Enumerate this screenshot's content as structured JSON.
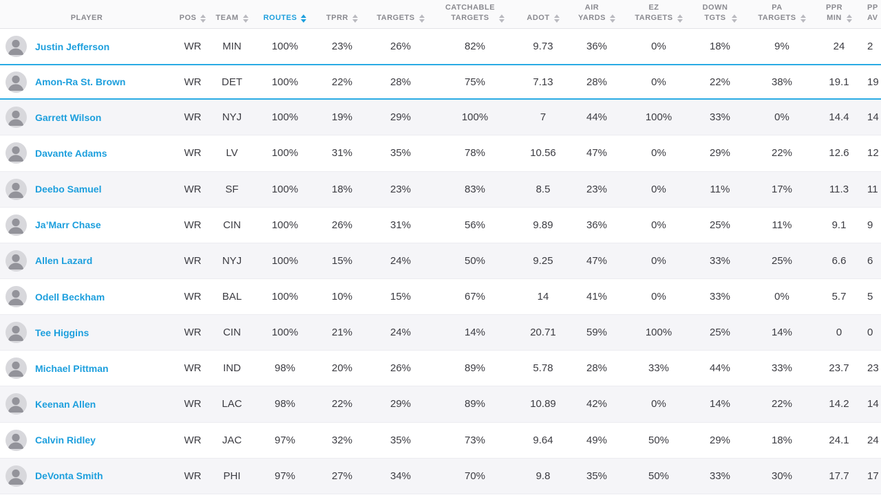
{
  "colors": {
    "accent_blue": "#1d9fdd",
    "header_text": "#8a8a90",
    "body_text": "#3c3c42",
    "stripe": "#f5f5f8",
    "row_border": "#ececf0",
    "header_bg": "#fafafb",
    "header_border": "#e3e3e7",
    "selected_border": "#2aabe4",
    "avatar_bg": "#d8d8dc",
    "avatar_fg": "#93939a"
  },
  "table": {
    "sorted_column": "ROUTES",
    "sort_direction": "desc",
    "columns": [
      {
        "key": "player",
        "label": "PLAYER",
        "sortable": false,
        "sorted": false
      },
      {
        "key": "pos",
        "label": "POS",
        "sortable": true,
        "sorted": false
      },
      {
        "key": "team",
        "label": "TEAM",
        "sortable": true,
        "sorted": false
      },
      {
        "key": "routes",
        "label": "ROUTES",
        "sortable": true,
        "sorted": true
      },
      {
        "key": "tprr",
        "label": "TPRR",
        "sortable": true,
        "sorted": false
      },
      {
        "key": "targets",
        "label": "TARGETS",
        "sortable": true,
        "sorted": false
      },
      {
        "key": "catchable",
        "label": "CATCHABLE\nTARGETS",
        "sortable": true,
        "sorted": false
      },
      {
        "key": "adot",
        "label": "ADOT",
        "sortable": true,
        "sorted": false
      },
      {
        "key": "air_yards",
        "label": "AIR\nYARDS",
        "sortable": true,
        "sorted": false
      },
      {
        "key": "ez_targets",
        "label": "EZ\nTARGETS",
        "sortable": true,
        "sorted": false
      },
      {
        "key": "down_tgts",
        "label": "DOWN\nTGTS",
        "sortable": true,
        "sorted": false
      },
      {
        "key": "pa_targets",
        "label": "PA\nTARGETS",
        "sortable": true,
        "sorted": false
      },
      {
        "key": "ppr_min",
        "label": "PPR\nMIN",
        "sortable": true,
        "sorted": false
      },
      {
        "key": "ppr_avg",
        "label": "PP\nAV",
        "sortable": true,
        "sorted": false,
        "clipped_at_right_edge": true
      }
    ],
    "rows": [
      {
        "player": "Justin Jefferson",
        "pos": "WR",
        "team": "MIN",
        "routes": "100%",
        "tprr": "23%",
        "targets": "26%",
        "catchable": "82%",
        "adot": "9.73",
        "air_yards": "36%",
        "ez_targets": "0%",
        "down_tgts": "18%",
        "pa_targets": "9%",
        "ppr_min": "24",
        "ppr_avg": "2",
        "selected": false
      },
      {
        "player": "Amon-Ra St. Brown",
        "pos": "WR",
        "team": "DET",
        "routes": "100%",
        "tprr": "22%",
        "targets": "28%",
        "catchable": "75%",
        "adot": "7.13",
        "air_yards": "28%",
        "ez_targets": "0%",
        "down_tgts": "22%",
        "pa_targets": "38%",
        "ppr_min": "19.1",
        "ppr_avg": "19",
        "selected": true
      },
      {
        "player": "Garrett Wilson",
        "pos": "WR",
        "team": "NYJ",
        "routes": "100%",
        "tprr": "19%",
        "targets": "29%",
        "catchable": "100%",
        "adot": "7",
        "air_yards": "44%",
        "ez_targets": "100%",
        "down_tgts": "33%",
        "pa_targets": "0%",
        "ppr_min": "14.4",
        "ppr_avg": "14",
        "selected": false
      },
      {
        "player": "Davante Adams",
        "pos": "WR",
        "team": "LV",
        "routes": "100%",
        "tprr": "31%",
        "targets": "35%",
        "catchable": "78%",
        "adot": "10.56",
        "air_yards": "47%",
        "ez_targets": "0%",
        "down_tgts": "29%",
        "pa_targets": "22%",
        "ppr_min": "12.6",
        "ppr_avg": "12",
        "selected": false
      },
      {
        "player": "Deebo Samuel",
        "pos": "WR",
        "team": "SF",
        "routes": "100%",
        "tprr": "18%",
        "targets": "23%",
        "catchable": "83%",
        "adot": "8.5",
        "air_yards": "23%",
        "ez_targets": "0%",
        "down_tgts": "11%",
        "pa_targets": "17%",
        "ppr_min": "11.3",
        "ppr_avg": "11",
        "selected": false
      },
      {
        "player": "Ja’Marr Chase",
        "pos": "WR",
        "team": "CIN",
        "routes": "100%",
        "tprr": "26%",
        "targets": "31%",
        "catchable": "56%",
        "adot": "9.89",
        "air_yards": "36%",
        "ez_targets": "0%",
        "down_tgts": "25%",
        "pa_targets": "11%",
        "ppr_min": "9.1",
        "ppr_avg": "9",
        "selected": false
      },
      {
        "player": "Allen Lazard",
        "pos": "WR",
        "team": "NYJ",
        "routes": "100%",
        "tprr": "15%",
        "targets": "24%",
        "catchable": "50%",
        "adot": "9.25",
        "air_yards": "47%",
        "ez_targets": "0%",
        "down_tgts": "33%",
        "pa_targets": "25%",
        "ppr_min": "6.6",
        "ppr_avg": "6",
        "selected": false
      },
      {
        "player": "Odell Beckham",
        "pos": "WR",
        "team": "BAL",
        "routes": "100%",
        "tprr": "10%",
        "targets": "15%",
        "catchable": "67%",
        "adot": "14",
        "air_yards": "41%",
        "ez_targets": "0%",
        "down_tgts": "33%",
        "pa_targets": "0%",
        "ppr_min": "5.7",
        "ppr_avg": "5",
        "selected": false
      },
      {
        "player": "Tee Higgins",
        "pos": "WR",
        "team": "CIN",
        "routes": "100%",
        "tprr": "21%",
        "targets": "24%",
        "catchable": "14%",
        "adot": "20.71",
        "air_yards": "59%",
        "ez_targets": "100%",
        "down_tgts": "25%",
        "pa_targets": "14%",
        "ppr_min": "0",
        "ppr_avg": "0",
        "selected": false
      },
      {
        "player": "Michael Pittman",
        "pos": "WR",
        "team": "IND",
        "routes": "98%",
        "tprr": "20%",
        "targets": "26%",
        "catchable": "89%",
        "adot": "5.78",
        "air_yards": "28%",
        "ez_targets": "33%",
        "down_tgts": "44%",
        "pa_targets": "33%",
        "ppr_min": "23.7",
        "ppr_avg": "23",
        "selected": false
      },
      {
        "player": "Keenan Allen",
        "pos": "WR",
        "team": "LAC",
        "routes": "98%",
        "tprr": "22%",
        "targets": "29%",
        "catchable": "89%",
        "adot": "10.89",
        "air_yards": "42%",
        "ez_targets": "0%",
        "down_tgts": "14%",
        "pa_targets": "22%",
        "ppr_min": "14.2",
        "ppr_avg": "14",
        "selected": false
      },
      {
        "player": "Calvin Ridley",
        "pos": "WR",
        "team": "JAC",
        "routes": "97%",
        "tprr": "32%",
        "targets": "35%",
        "catchable": "73%",
        "adot": "9.64",
        "air_yards": "49%",
        "ez_targets": "50%",
        "down_tgts": "29%",
        "pa_targets": "18%",
        "ppr_min": "24.1",
        "ppr_avg": "24",
        "selected": false
      },
      {
        "player": "DeVonta Smith",
        "pos": "WR",
        "team": "PHI",
        "routes": "97%",
        "tprr": "27%",
        "targets": "34%",
        "catchable": "70%",
        "adot": "9.8",
        "air_yards": "35%",
        "ez_targets": "50%",
        "down_tgts": "33%",
        "pa_targets": "30%",
        "ppr_min": "17.7",
        "ppr_avg": "17",
        "selected": false
      }
    ]
  }
}
